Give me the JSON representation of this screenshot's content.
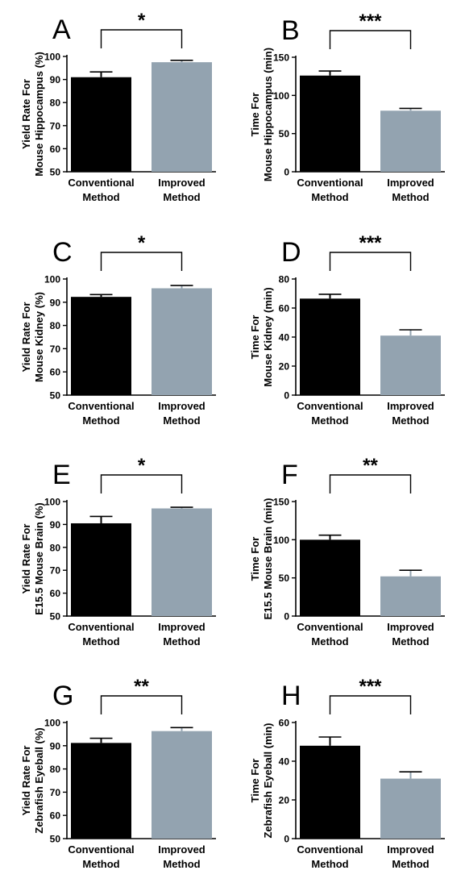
{
  "colors": {
    "conventional": "#000000",
    "improved": "#93a3b0"
  },
  "chart_data": [
    {
      "panel": "A",
      "type": "bar",
      "ylabel": [
        "Yield Rate For",
        "Mouse Hippocampus (%)"
      ],
      "categories": [
        [
          "Conventional",
          "Method"
        ],
        [
          "Improved",
          "Method"
        ]
      ],
      "values": [
        91,
        97.5
      ],
      "errors": [
        2.3,
        0.8
      ],
      "ylim": [
        50,
        100
      ],
      "yticks": [
        50,
        60,
        70,
        80,
        90,
        100
      ],
      "significance": "*"
    },
    {
      "panel": "B",
      "type": "bar",
      "ylabel": [
        "Time For",
        "Mouse Hippocampus (min)"
      ],
      "categories": [
        [
          "Conventional",
          "Method"
        ],
        [
          "Improved",
          "Method"
        ]
      ],
      "values": [
        126,
        80
      ],
      "errors": [
        6,
        3
      ],
      "ylim": [
        0,
        150
      ],
      "yticks": [
        0,
        50,
        100,
        150
      ],
      "significance": "***"
    },
    {
      "panel": "C",
      "type": "bar",
      "ylabel": [
        "Yield Rate For",
        "Mouse Kidney (%)"
      ],
      "categories": [
        [
          "Conventional",
          "Method"
        ],
        [
          "Improved",
          "Method"
        ]
      ],
      "values": [
        92.3,
        96
      ],
      "errors": [
        1,
        1.2
      ],
      "ylim": [
        50,
        100
      ],
      "yticks": [
        50,
        60,
        70,
        80,
        90,
        100
      ],
      "significance": "*"
    },
    {
      "panel": "D",
      "type": "bar",
      "ylabel": [
        "Time For",
        "Mouse Kidney (min)"
      ],
      "categories": [
        [
          "Conventional",
          "Method"
        ],
        [
          "Improved",
          "Method"
        ]
      ],
      "values": [
        66.5,
        41
      ],
      "errors": [
        3,
        4
      ],
      "ylim": [
        0,
        80
      ],
      "yticks": [
        0,
        20,
        40,
        60,
        80
      ],
      "significance": "***"
    },
    {
      "panel": "E",
      "type": "bar",
      "ylabel": [
        "Yield Rate For",
        "E15.5 Mouse Brain (%)"
      ],
      "categories": [
        [
          "Conventional",
          "Method"
        ],
        [
          "Improved",
          "Method"
        ]
      ],
      "values": [
        90.5,
        97
      ],
      "errors": [
        3,
        0.5
      ],
      "ylim": [
        50,
        100
      ],
      "yticks": [
        50,
        60,
        70,
        80,
        90,
        100
      ],
      "significance": "*"
    },
    {
      "panel": "F",
      "type": "bar",
      "ylabel": [
        "Time For",
        "E15.5 Mouse Brain (min)"
      ],
      "categories": [
        [
          "Conventional",
          "Method"
        ],
        [
          "Improved",
          "Method"
        ]
      ],
      "values": [
        100,
        52
      ],
      "errors": [
        6,
        8
      ],
      "ylim": [
        0,
        150
      ],
      "yticks": [
        0,
        50,
        100,
        150
      ],
      "significance": "**"
    },
    {
      "panel": "G",
      "type": "bar",
      "ylabel": [
        "Yield Rate For",
        "Zebrafish Eyeball (%)"
      ],
      "categories": [
        [
          "Conventional",
          "Method"
        ],
        [
          "Improved",
          "Method"
        ]
      ],
      "values": [
        91.2,
        96.3
      ],
      "errors": [
        2,
        1.5
      ],
      "ylim": [
        50,
        100
      ],
      "yticks": [
        50,
        60,
        70,
        80,
        90,
        100
      ],
      "significance": "**"
    },
    {
      "panel": "H",
      "type": "bar",
      "ylabel": [
        "Time For",
        "Zebrafish Eyeball (min)"
      ],
      "categories": [
        [
          "Conventional",
          "Method"
        ],
        [
          "Improved",
          "Method"
        ]
      ],
      "values": [
        48,
        31
      ],
      "errors": [
        4.5,
        3.5
      ],
      "ylim": [
        0,
        60
      ],
      "yticks": [
        0,
        20,
        40,
        60
      ],
      "significance": "***"
    }
  ]
}
